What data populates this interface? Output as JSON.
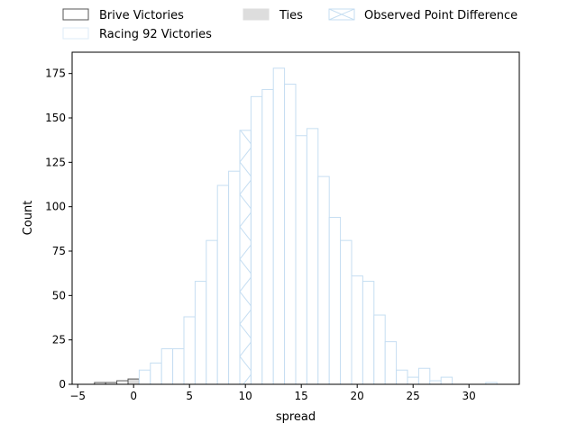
{
  "chart_data": {
    "type": "bar",
    "xlabel": "spread",
    "ylabel": "Count",
    "xlim": [
      -5.5,
      34.5
    ],
    "ylim": [
      0,
      187
    ],
    "xticks": [
      -5,
      0,
      5,
      10,
      15,
      20,
      25,
      30
    ],
    "yticks": [
      0,
      25,
      50,
      75,
      100,
      125,
      150,
      175
    ],
    "grid": false,
    "legend_position": "top",
    "legend": [
      {
        "label": "Brive Victories",
        "style": "outline-gray"
      },
      {
        "label": "Racing 92 Victories",
        "style": "outline-pale-blue"
      },
      {
        "label": "Ties",
        "style": "filled-gray"
      },
      {
        "label": "Observed Point Difference",
        "style": "hatched-blue"
      }
    ],
    "series": [
      {
        "name": "Brive Victories",
        "color": "#555555",
        "fill": "#ffffff",
        "bins": [
          {
            "x0": -3.5,
            "x1": -2.5,
            "count": 1
          },
          {
            "x0": -2.5,
            "x1": -1.5,
            "count": 1
          },
          {
            "x0": -1.5,
            "x1": -0.5,
            "count": 2
          }
        ]
      },
      {
        "name": "Ties",
        "color": "#555555",
        "fill": "#dddddd",
        "bins": [
          {
            "x0": -0.5,
            "x1": 0.5,
            "count": 3
          }
        ]
      },
      {
        "name": "Racing 92 Victories",
        "color": "#c6def2",
        "fill": "#ffffff",
        "bins": [
          {
            "x0": 0.5,
            "x1": 1.5,
            "count": 8
          },
          {
            "x0": 1.5,
            "x1": 2.5,
            "count": 12
          },
          {
            "x0": 2.5,
            "x1": 3.5,
            "count": 20
          },
          {
            "x0": 3.5,
            "x1": 4.5,
            "count": 20
          },
          {
            "x0": 4.5,
            "x1": 5.5,
            "count": 38
          },
          {
            "x0": 5.5,
            "x1": 6.5,
            "count": 58
          },
          {
            "x0": 6.5,
            "x1": 7.5,
            "count": 81
          },
          {
            "x0": 7.5,
            "x1": 8.5,
            "count": 112
          },
          {
            "x0": 8.5,
            "x1": 9.5,
            "count": 120
          },
          {
            "x0": 10.5,
            "x1": 11.5,
            "count": 162
          },
          {
            "x0": 11.5,
            "x1": 12.5,
            "count": 166
          },
          {
            "x0": 12.5,
            "x1": 13.5,
            "count": 178
          },
          {
            "x0": 13.5,
            "x1": 14.5,
            "count": 169
          },
          {
            "x0": 14.5,
            "x1": 15.5,
            "count": 140
          },
          {
            "x0": 15.5,
            "x1": 16.5,
            "count": 144
          },
          {
            "x0": 16.5,
            "x1": 17.5,
            "count": 117
          },
          {
            "x0": 17.5,
            "x1": 18.5,
            "count": 94
          },
          {
            "x0": 18.5,
            "x1": 19.5,
            "count": 81
          },
          {
            "x0": 19.5,
            "x1": 20.5,
            "count": 61
          },
          {
            "x0": 20.5,
            "x1": 21.5,
            "count": 58
          },
          {
            "x0": 21.5,
            "x1": 22.5,
            "count": 39
          },
          {
            "x0": 22.5,
            "x1": 23.5,
            "count": 24
          },
          {
            "x0": 23.5,
            "x1": 24.5,
            "count": 8
          },
          {
            "x0": 24.5,
            "x1": 25.5,
            "count": 4
          },
          {
            "x0": 25.5,
            "x1": 26.5,
            "count": 9
          },
          {
            "x0": 26.5,
            "x1": 27.5,
            "count": 2
          },
          {
            "x0": 27.5,
            "x1": 28.5,
            "count": 4
          },
          {
            "x0": 31.5,
            "x1": 32.5,
            "count": 1
          }
        ]
      },
      {
        "name": "Observed Point Difference",
        "color": "#c6def2",
        "fill": "#ffffff",
        "hatch": true,
        "bins": [
          {
            "x0": 9.5,
            "x1": 10.5,
            "count": 143
          }
        ]
      }
    ]
  }
}
